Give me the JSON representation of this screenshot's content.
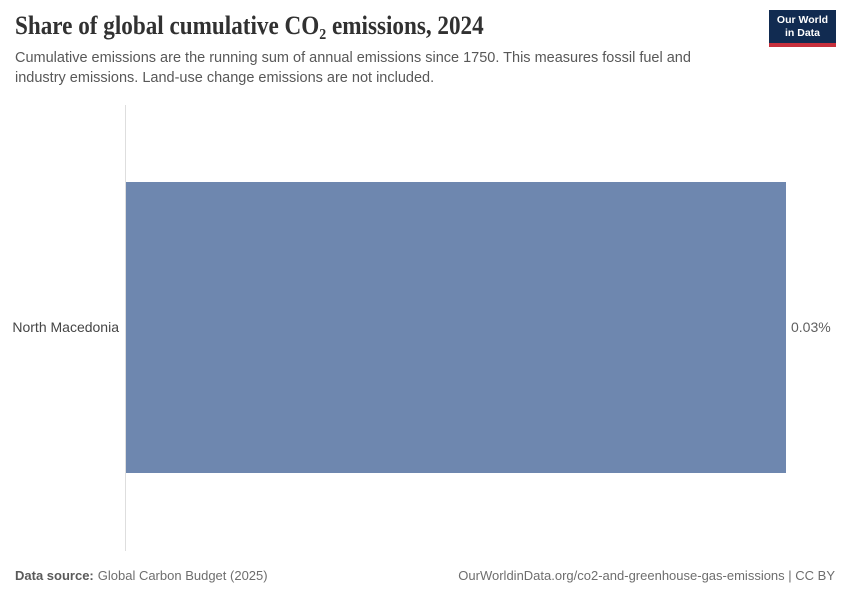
{
  "header": {
    "title": "Share of global cumulative CO₂ emissions, 2024",
    "subtitle": "Cumulative emissions are the running sum of annual emissions since 1750. This measures fossil fuel and industry emissions. Land-use change emissions are not included.",
    "logo": {
      "line1": "Our World",
      "line2": "in Data"
    }
  },
  "chart_data": {
    "type": "bar",
    "orientation": "horizontal",
    "title": "Share of global cumulative CO₂ emissions, 2024",
    "categories": [
      "North Macedonia"
    ],
    "values": [
      0.03
    ],
    "unit": "%",
    "value_labels": [
      "0.03%"
    ],
    "xlim": [
      0,
      0.03
    ],
    "grid": false,
    "legend": "none"
  },
  "footer": {
    "source_label": "Data source:",
    "source_value": "Global Carbon Budget (2025)",
    "attribution": "OurWorldinData.org/co2-and-greenhouse-gas-emissions | CC BY"
  },
  "colors": {
    "logo_bg": "#112b51",
    "logo_accent": "#c7303c",
    "bar": "#6e87af"
  }
}
